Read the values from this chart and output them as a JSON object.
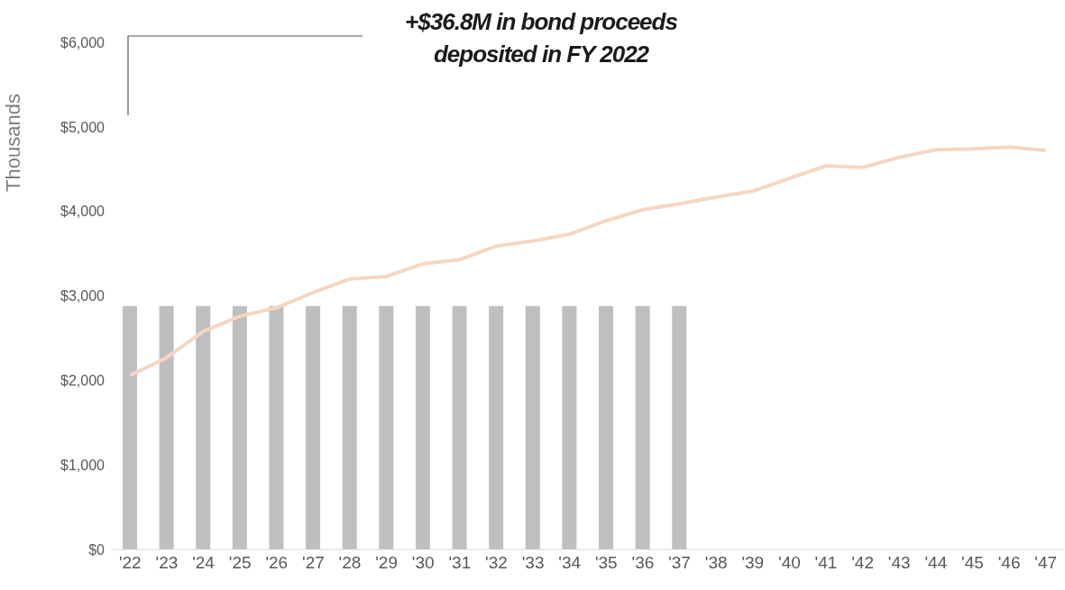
{
  "chart_data": {
    "type": "bar",
    "title": "+$36.8M in bond proceeds deposited in FY 2022",
    "ylabel": "Thousands",
    "categories": [
      "'22",
      "'23",
      "'24",
      "'25",
      "'26",
      "'27",
      "'28",
      "'29",
      "'30",
      "'31",
      "'32",
      "'33",
      "'34",
      "'35",
      "'36",
      "'37",
      "'38",
      "'39",
      "'40",
      "'41",
      "'42",
      "'43",
      "'44",
      "'45",
      "'46",
      "'47"
    ],
    "series": [
      {
        "color": "#bfbfbf",
        "values": [
          2880,
          2880,
          2880,
          2880,
          2880,
          2880,
          2880,
          2880,
          2880,
          2880,
          2880,
          2880,
          2880,
          2880,
          2880,
          2880,
          null,
          null,
          null,
          null,
          null,
          null,
          null,
          null,
          null,
          null
        ]
      },
      {
        "type": "line",
        "color": "#f6d6c2",
        "values": [
          2060,
          2270,
          2580,
          2760,
          2860,
          3040,
          3200,
          3230,
          3380,
          3430,
          3590,
          3650,
          3730,
          3890,
          4020,
          4090,
          4170,
          4240,
          4390,
          4540,
          4520,
          4640,
          4730,
          4740,
          4760,
          4720
        ]
      }
    ],
    "ylim": [
      0,
      6000
    ],
    "yticks": [
      {
        "value": 0,
        "label": "$0"
      },
      {
        "value": 1000,
        "label": "$1,000"
      },
      {
        "value": 2000,
        "label": "$2,000"
      },
      {
        "value": 3000,
        "label": "$3,000"
      },
      {
        "value": 4000,
        "label": "$4,000"
      },
      {
        "value": 5000,
        "label": "$5,000"
      },
      {
        "value": 6000,
        "label": "$6,000"
      }
    ],
    "grid": false,
    "legend": false,
    "marker": "none",
    "line_style": "solid"
  }
}
